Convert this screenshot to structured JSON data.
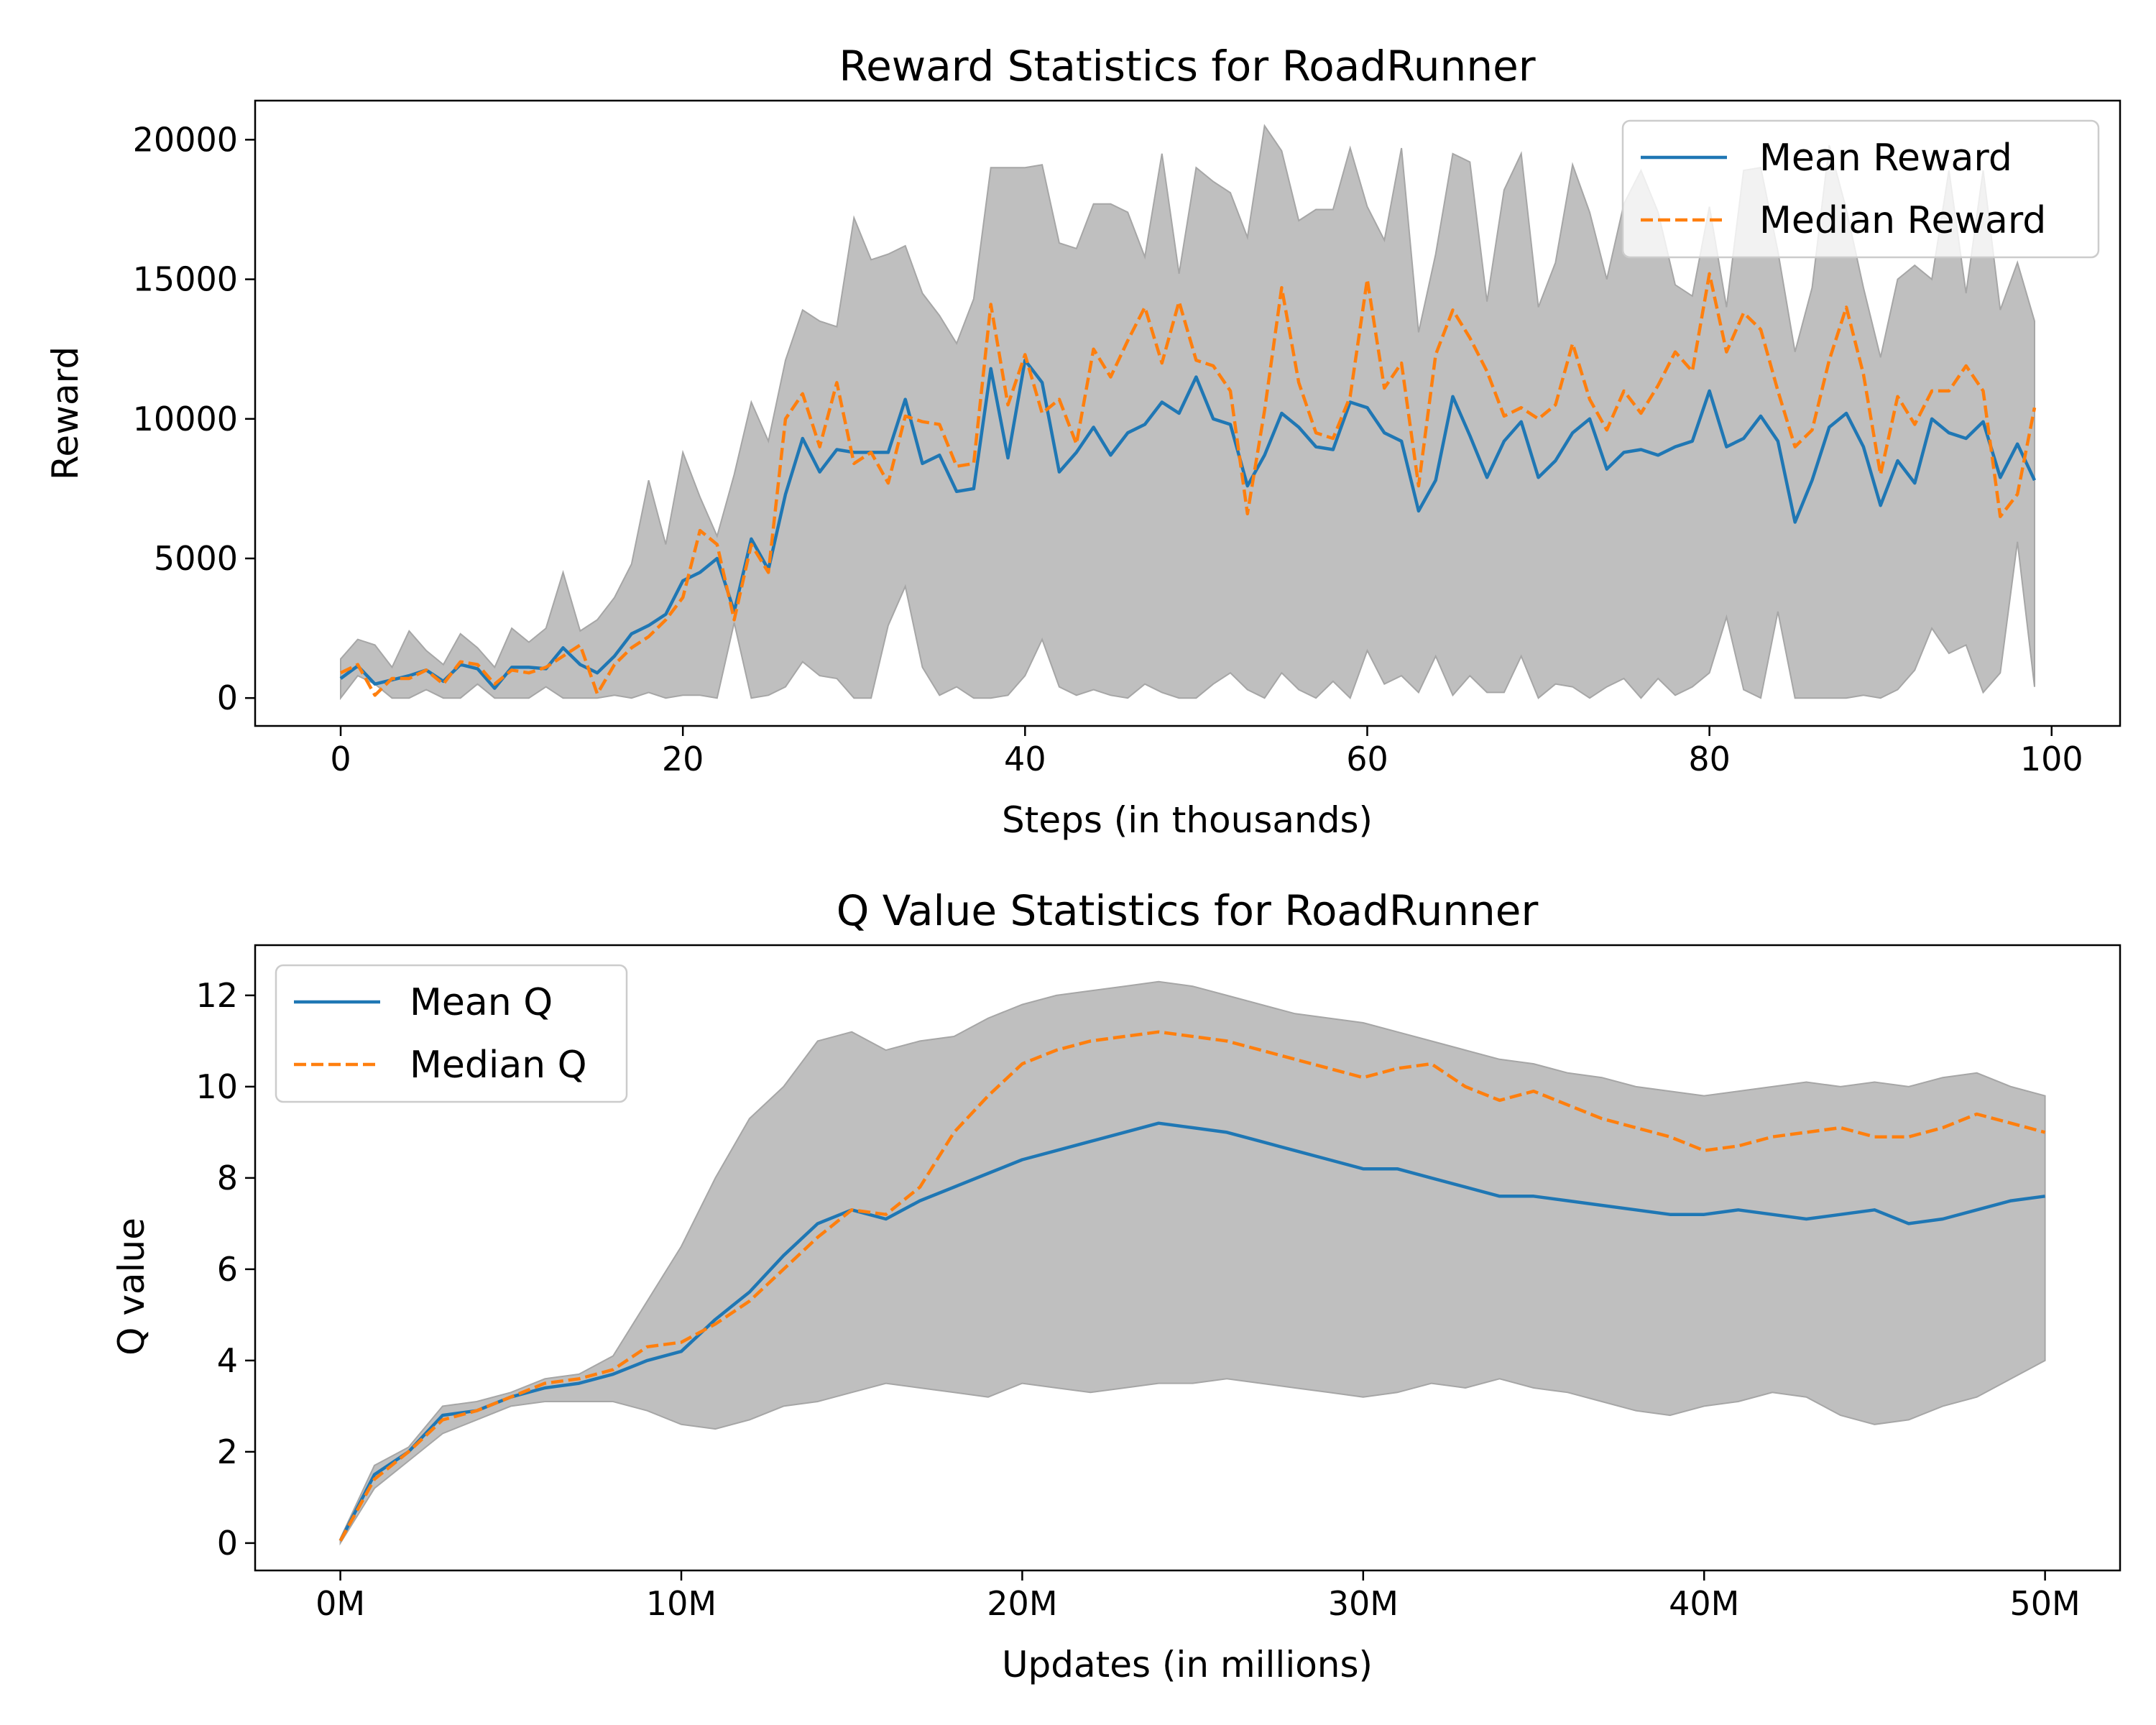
{
  "colors": {
    "mean": "#1f77b4",
    "median": "#ff7f0e",
    "band": "#bfbfbf",
    "band_edge": "#a6a6a6"
  },
  "chart_data": [
    {
      "type": "line",
      "title": "Reward Statistics for RoadRunner",
      "xlabel": "Steps (in thousands)",
      "ylabel": "Reward",
      "xlim": [
        -5,
        104
      ],
      "ylim": [
        -1000,
        21400
      ],
      "xticks": [
        0,
        20,
        40,
        60,
        80,
        100
      ],
      "xtick_labels": [
        "0",
        "20",
        "40",
        "60",
        "80",
        "100"
      ],
      "yticks": [
        0,
        5000,
        10000,
        15000,
        20000
      ],
      "ytick_labels": [
        "0",
        "5000",
        "10000",
        "15000",
        "20000"
      ],
      "grid": false,
      "legend_position": "upper right",
      "x_start": 0,
      "x_step": 1,
      "series": [
        {
          "name": "Mean Reward",
          "style": "solid",
          "values": [
            700,
            1150,
            500,
            650,
            800,
            1000,
            600,
            1200,
            1050,
            350,
            1100,
            1100,
            1050,
            1800,
            1200,
            900,
            1500,
            2300,
            2600,
            3000,
            4200,
            4500,
            5000,
            3100,
            5700,
            4600,
            7300,
            9300,
            8100,
            8900,
            8800,
            8800,
            8800,
            10700,
            8400,
            8700,
            7400,
            7500,
            11800,
            8600,
            12100,
            11300,
            8100,
            8800,
            9700,
            8700,
            9500,
            9800,
            10600,
            10200,
            11500,
            10000,
            9800,
            7600,
            8700,
            10200,
            9700,
            9000,
            8900,
            10600,
            10400,
            9500,
            9200,
            6700,
            7800,
            10800,
            9400,
            7900,
            9200,
            9900,
            7900,
            8500,
            9500,
            10000,
            8200,
            8800,
            8900,
            8700,
            9000,
            9200,
            11000,
            9000,
            9300,
            10100,
            9200,
            6300,
            7800,
            9700,
            10200,
            9000,
            6900,
            8500,
            7700,
            10000,
            9500,
            9300,
            9900,
            7900,
            9100,
            7800
          ]
        },
        {
          "name": "Median Reward",
          "style": "dashed",
          "values": [
            900,
            1200,
            100,
            700,
            700,
            1000,
            500,
            1300,
            1200,
            500,
            1000,
            900,
            1100,
            1500,
            1900,
            150,
            1200,
            1800,
            2200,
            2800,
            3600,
            6000,
            5500,
            2800,
            5500,
            4500,
            10000,
            10900,
            9000,
            11300,
            8400,
            8800,
            7700,
            10100,
            9900,
            9800,
            8300,
            8400,
            14100,
            10500,
            12300,
            10200,
            10700,
            9100,
            12500,
            11500,
            12800,
            14000,
            12000,
            14200,
            12100,
            11900,
            11000,
            6600,
            10300,
            14700,
            11300,
            9500,
            9300,
            10800,
            15000,
            11100,
            12000,
            7600,
            12300,
            13900,
            12900,
            11700,
            10100,
            10400,
            10000,
            10500,
            12700,
            10700,
            9600,
            11000,
            10200,
            11200,
            12400,
            11700,
            15200,
            12400,
            13800,
            13200,
            11000,
            9000,
            9600,
            12100,
            14000,
            11600,
            8000,
            10800,
            9800,
            11000,
            11000,
            11900,
            11000,
            6500,
            7300,
            10400
          ]
        },
        {
          "name": "band_max",
          "style": "fill-upper",
          "values": [
            1400,
            2100,
            1900,
            1100,
            2400,
            1700,
            1200,
            2300,
            1800,
            1100,
            2500,
            2000,
            2500,
            4500,
            2400,
            2800,
            3600,
            4800,
            7800,
            5500,
            8800,
            7200,
            5800,
            8000,
            10600,
            9200,
            12100,
            13900,
            13500,
            13300,
            17200,
            15700,
            15900,
            16200,
            14500,
            13700,
            12700,
            14300,
            19000,
            19000,
            19000,
            19100,
            16300,
            16100,
            17700,
            17700,
            17400,
            15800,
            19500,
            15200,
            19000,
            18500,
            18100,
            16500,
            20500,
            19600,
            17100,
            17500,
            17500,
            19700,
            17600,
            16400,
            19700,
            13100,
            15900,
            19500,
            19200,
            14200,
            18200,
            19500,
            14000,
            15600,
            19100,
            17400,
            15000,
            17700,
            18900,
            17400,
            14800,
            14400,
            17600,
            14000,
            18900,
            19000,
            16000,
            12400,
            14700,
            19800,
            17500,
            14700,
            12200,
            15000,
            15500,
            15000,
            18900,
            14500,
            18900,
            13900,
            15600,
            13500
          ]
        },
        {
          "name": "band_min",
          "style": "fill-lower",
          "values": [
            0,
            800,
            500,
            0,
            0,
            300,
            0,
            0,
            500,
            0,
            0,
            0,
            400,
            0,
            0,
            0,
            100,
            0,
            200,
            0,
            100,
            100,
            0,
            2700,
            0,
            100,
            400,
            1300,
            800,
            700,
            0,
            0,
            2600,
            4000,
            1100,
            100,
            400,
            0,
            0,
            100,
            800,
            2100,
            400,
            100,
            300,
            100,
            0,
            500,
            200,
            0,
            0,
            500,
            900,
            300,
            0,
            900,
            300,
            0,
            600,
            0,
            1700,
            500,
            800,
            200,
            1500,
            100,
            800,
            200,
            200,
            1500,
            0,
            500,
            400,
            0,
            400,
            700,
            0,
            700,
            100,
            400,
            900,
            2900,
            300,
            0,
            3100,
            0,
            0,
            0,
            0,
            100,
            0,
            300,
            1000,
            2500,
            1600,
            1900,
            200,
            900,
            5600,
            400
          ]
        }
      ]
    },
    {
      "type": "line",
      "title": "Q Value Statistics for RoadRunner",
      "xlabel": "Updates (in millions)",
      "ylabel": "Q value",
      "xlim": [
        -2.5,
        52.2
      ],
      "ylim": [
        -0.6,
        13.1
      ],
      "xticks": [
        0,
        10,
        20,
        30,
        40,
        50
      ],
      "xtick_labels": [
        "0M",
        "10M",
        "20M",
        "30M",
        "40M",
        "50M"
      ],
      "yticks": [
        0,
        2,
        4,
        6,
        8,
        10,
        12
      ],
      "ytick_labels": [
        "0",
        "2",
        "4",
        "6",
        "8",
        "10",
        "12"
      ],
      "grid": false,
      "legend_position": "upper left",
      "x": [
        0,
        1,
        2,
        3,
        4,
        5,
        6,
        7,
        8,
        9,
        10,
        11,
        12,
        13,
        14,
        15,
        16,
        17,
        18,
        19,
        20,
        21,
        22,
        23,
        24,
        25,
        26,
        27,
        28,
        29,
        30,
        31,
        32,
        33,
        34,
        35,
        36,
        37,
        38,
        39,
        40,
        41,
        42,
        43,
        44,
        45,
        46,
        47,
        48,
        49,
        50
      ],
      "series": [
        {
          "name": "Mean Q",
          "style": "solid",
          "values": [
            0.05,
            1.5,
            2.0,
            2.8,
            2.9,
            3.2,
            3.4,
            3.5,
            3.7,
            4.0,
            4.2,
            4.9,
            5.5,
            6.3,
            7.0,
            7.3,
            7.1,
            7.5,
            7.8,
            8.1,
            8.4,
            8.6,
            8.8,
            9.0,
            9.2,
            9.1,
            9.0,
            8.8,
            8.6,
            8.4,
            8.2,
            8.2,
            8.0,
            7.8,
            7.6,
            7.6,
            7.5,
            7.4,
            7.3,
            7.2,
            7.2,
            7.3,
            7.2,
            7.1,
            7.2,
            7.3,
            7.0,
            7.1,
            7.3,
            7.5,
            7.6
          ]
        },
        {
          "name": "Median Q",
          "style": "dashed",
          "values": [
            0.05,
            1.4,
            2.0,
            2.7,
            2.9,
            3.2,
            3.5,
            3.6,
            3.8,
            4.3,
            4.4,
            4.8,
            5.3,
            6.0,
            6.7,
            7.3,
            7.2,
            7.8,
            9.0,
            9.8,
            10.5,
            10.8,
            11.0,
            11.1,
            11.2,
            11.1,
            11.0,
            10.8,
            10.6,
            10.4,
            10.2,
            10.4,
            10.5,
            10.0,
            9.7,
            9.9,
            9.6,
            9.3,
            9.1,
            8.9,
            8.6,
            8.7,
            8.9,
            9.0,
            9.1,
            8.9,
            8.9,
            9.1,
            9.4,
            9.2,
            9.0
          ]
        },
        {
          "name": "band_max",
          "style": "fill-upper",
          "values": [
            0.1,
            1.7,
            2.1,
            3.0,
            3.1,
            3.3,
            3.6,
            3.7,
            4.1,
            5.3,
            6.5,
            8.0,
            9.3,
            10.0,
            11.0,
            11.2,
            10.8,
            11.0,
            11.1,
            11.5,
            11.8,
            12.0,
            12.1,
            12.2,
            12.3,
            12.2,
            12.0,
            11.8,
            11.6,
            11.5,
            11.4,
            11.2,
            11.0,
            10.8,
            10.6,
            10.5,
            10.3,
            10.2,
            10.0,
            9.9,
            9.8,
            9.9,
            10.0,
            10.1,
            10.0,
            10.1,
            10.0,
            10.2,
            10.3,
            10.0,
            9.8
          ]
        },
        {
          "name": "band_min",
          "style": "fill-lower",
          "values": [
            0.0,
            1.2,
            1.8,
            2.4,
            2.7,
            3.0,
            3.1,
            3.1,
            3.1,
            2.9,
            2.6,
            2.5,
            2.7,
            3.0,
            3.1,
            3.3,
            3.5,
            3.4,
            3.3,
            3.2,
            3.5,
            3.4,
            3.3,
            3.4,
            3.5,
            3.5,
            3.6,
            3.5,
            3.4,
            3.3,
            3.2,
            3.3,
            3.5,
            3.4,
            3.6,
            3.4,
            3.3,
            3.1,
            2.9,
            2.8,
            3.0,
            3.1,
            3.3,
            3.2,
            2.8,
            2.6,
            2.7,
            3.0,
            3.2,
            3.6,
            4.0
          ]
        }
      ]
    }
  ]
}
